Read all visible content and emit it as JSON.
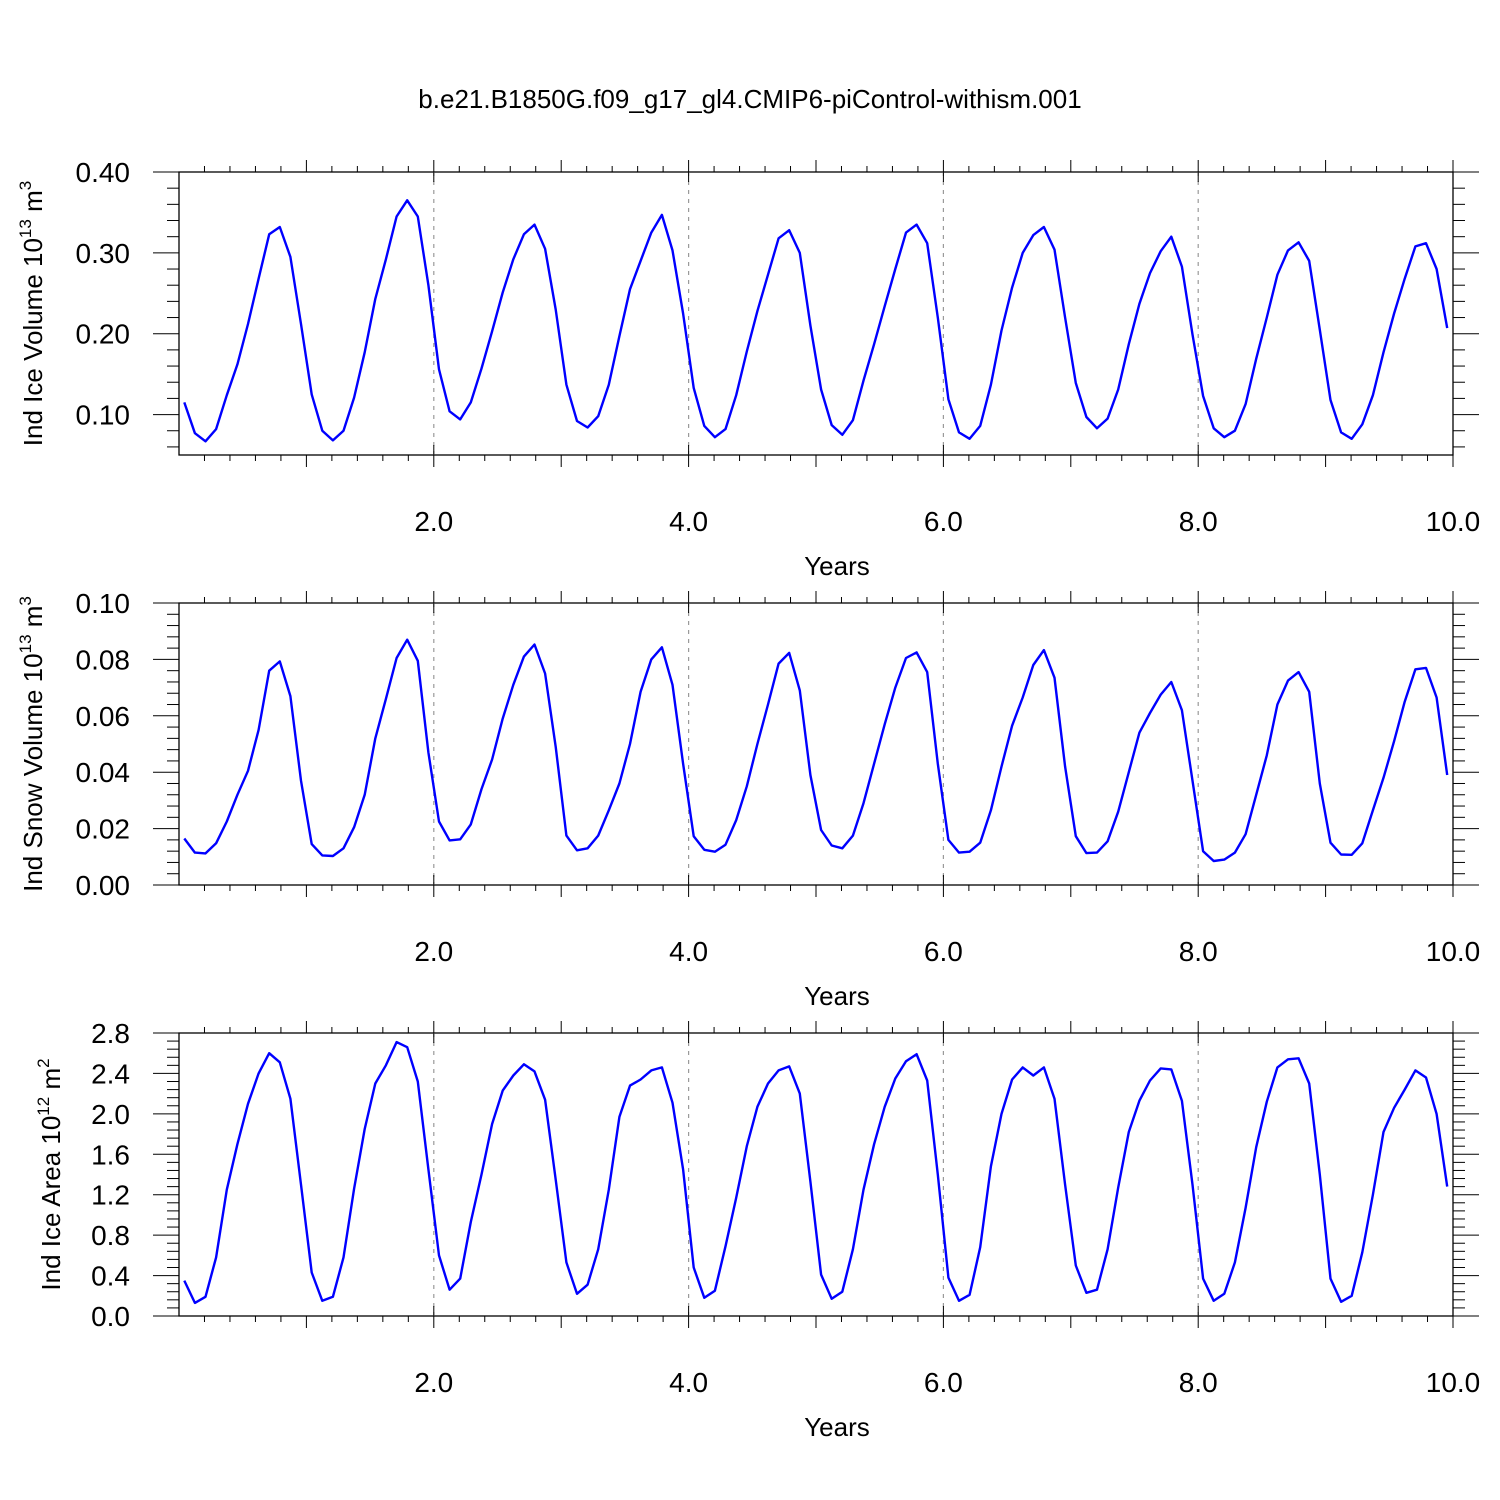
{
  "title": "b.e21.B1850G.f09_g17_gl4.CMIP6-piControl-withism.001",
  "colors": {
    "line": "#0000ff",
    "axis": "#000000",
    "gridline": "#9a9a9a"
  },
  "chart_data": [
    {
      "type": "line",
      "xlabel": "Years",
      "ylabel": {
        "base": "Ind Ice Volume 10",
        "sup": "13",
        "unit": " m",
        "unit_sup": "3"
      },
      "xlim": [
        0.0,
        10.0
      ],
      "ylim": [
        0.05,
        0.4
      ],
      "xticks": [
        "2.0",
        "4.0",
        "6.0",
        "8.0",
        "10.0"
      ],
      "yticks": [
        "0.10",
        "0.20",
        "0.30",
        "0.40"
      ],
      "grid": "vertical dashed at labeled x ticks",
      "series": [
        {
          "x_start": 0.0417,
          "x_step": 0.0833,
          "values": [
            0.115,
            0.077,
            0.067,
            0.082,
            0.124,
            0.162,
            0.212,
            0.268,
            0.323,
            0.332,
            0.295,
            0.212,
            0.125,
            0.08,
            0.068,
            0.08,
            0.121,
            0.177,
            0.243,
            0.292,
            0.345,
            0.365,
            0.345,
            0.26,
            0.156,
            0.104,
            0.094,
            0.115,
            0.157,
            0.203,
            0.251,
            0.292,
            0.323,
            0.335,
            0.305,
            0.23,
            0.137,
            0.092,
            0.084,
            0.098,
            0.137,
            0.197,
            0.255,
            0.29,
            0.325,
            0.347,
            0.303,
            0.225,
            0.133,
            0.086,
            0.072,
            0.082,
            0.124,
            0.178,
            0.228,
            0.273,
            0.318,
            0.328,
            0.3,
            0.21,
            0.131,
            0.087,
            0.075,
            0.093,
            0.142,
            0.187,
            0.234,
            0.28,
            0.325,
            0.335,
            0.312,
            0.22,
            0.119,
            0.078,
            0.07,
            0.086,
            0.137,
            0.204,
            0.257,
            0.3,
            0.322,
            0.332,
            0.304,
            0.22,
            0.139,
            0.097,
            0.083,
            0.095,
            0.131,
            0.187,
            0.237,
            0.275,
            0.302,
            0.32,
            0.283,
            0.199,
            0.123,
            0.083,
            0.072,
            0.08,
            0.113,
            0.169,
            0.22,
            0.273,
            0.303,
            0.313,
            0.29,
            0.205,
            0.118,
            0.078,
            0.07,
            0.088,
            0.124,
            0.177,
            0.225,
            0.268,
            0.308,
            0.312,
            0.28,
            0.207
          ]
        }
      ]
    },
    {
      "type": "line",
      "xlabel": "Years",
      "ylabel": {
        "base": "Ind Snow Volume 10",
        "sup": "13",
        "unit": " m",
        "unit_sup": "3"
      },
      "xlim": [
        0.0,
        10.0
      ],
      "ylim": [
        0.0,
        0.1
      ],
      "xticks": [
        "2.0",
        "4.0",
        "6.0",
        "8.0",
        "10.0"
      ],
      "yticks": [
        "0.00",
        "0.02",
        "0.04",
        "0.06",
        "0.08",
        "0.10"
      ],
      "grid": "vertical dashed at labeled x ticks",
      "series": [
        {
          "x_start": 0.0417,
          "x_step": 0.0833,
          "values": [
            0.0165,
            0.0115,
            0.0112,
            0.0148,
            0.0225,
            0.032,
            0.0405,
            0.055,
            0.076,
            0.0793,
            0.067,
            0.037,
            0.0145,
            0.0105,
            0.0103,
            0.013,
            0.0205,
            0.032,
            0.052,
            0.066,
            0.0805,
            0.087,
            0.0795,
            0.047,
            0.0225,
            0.0158,
            0.0162,
            0.0215,
            0.034,
            0.0445,
            0.059,
            0.071,
            0.081,
            0.0853,
            0.075,
            0.049,
            0.0175,
            0.0123,
            0.013,
            0.0175,
            0.0265,
            0.036,
            0.05,
            0.0685,
            0.08,
            0.0843,
            0.071,
            0.043,
            0.0173,
            0.0125,
            0.0118,
            0.0143,
            0.023,
            0.035,
            0.05,
            0.064,
            0.0785,
            0.0823,
            0.069,
            0.039,
            0.0195,
            0.014,
            0.013,
            0.0175,
            0.029,
            0.043,
            0.057,
            0.07,
            0.0805,
            0.0825,
            0.0755,
            0.043,
            0.016,
            0.0115,
            0.0118,
            0.015,
            0.0265,
            0.042,
            0.0565,
            0.0665,
            0.078,
            0.0833,
            0.0735,
            0.042,
            0.0173,
            0.0113,
            0.0115,
            0.0155,
            0.026,
            0.04,
            0.054,
            0.061,
            0.0675,
            0.072,
            0.062,
            0.037,
            0.012,
            0.0085,
            0.009,
            0.0115,
            0.018,
            0.032,
            0.046,
            0.064,
            0.0725,
            0.0755,
            0.0685,
            0.036,
            0.015,
            0.0108,
            0.0107,
            0.0148,
            0.0265,
            0.038,
            0.051,
            0.065,
            0.0765,
            0.077,
            0.0665,
            0.039
          ]
        }
      ]
    },
    {
      "type": "line",
      "xlabel": "Years",
      "ylabel": {
        "base": "Ind Ice Area 10",
        "sup": "12",
        "unit": " m",
        "unit_sup": "2"
      },
      "xlim": [
        0.0,
        10.0
      ],
      "ylim": [
        0.0,
        2.8
      ],
      "xticks": [
        "2.0",
        "4.0",
        "6.0",
        "8.0",
        "10.0"
      ],
      "yticks": [
        "0.0",
        "0.4",
        "0.8",
        "1.2",
        "1.6",
        "2.0",
        "2.4",
        "2.8"
      ],
      "grid": "vertical dashed at labeled x ticks",
      "series": [
        {
          "x_start": 0.0417,
          "x_step": 0.0833,
          "values": [
            0.35,
            0.13,
            0.19,
            0.58,
            1.25,
            1.7,
            2.1,
            2.4,
            2.6,
            2.51,
            2.15,
            1.3,
            0.43,
            0.15,
            0.19,
            0.58,
            1.26,
            1.85,
            2.3,
            2.48,
            2.71,
            2.66,
            2.32,
            1.45,
            0.6,
            0.26,
            0.37,
            0.93,
            1.4,
            1.9,
            2.23,
            2.38,
            2.49,
            2.42,
            2.14,
            1.35,
            0.53,
            0.22,
            0.31,
            0.66,
            1.25,
            1.97,
            2.28,
            2.34,
            2.43,
            2.46,
            2.11,
            1.45,
            0.48,
            0.18,
            0.25,
            0.69,
            1.17,
            1.68,
            2.07,
            2.3,
            2.43,
            2.47,
            2.2,
            1.33,
            0.41,
            0.17,
            0.24,
            0.66,
            1.25,
            1.7,
            2.07,
            2.35,
            2.52,
            2.59,
            2.33,
            1.4,
            0.38,
            0.15,
            0.21,
            0.68,
            1.48,
            2.0,
            2.34,
            2.46,
            2.38,
            2.46,
            2.15,
            1.3,
            0.5,
            0.23,
            0.26,
            0.66,
            1.27,
            1.82,
            2.13,
            2.33,
            2.45,
            2.44,
            2.13,
            1.3,
            0.37,
            0.15,
            0.22,
            0.53,
            1.07,
            1.67,
            2.12,
            2.46,
            2.54,
            2.55,
            2.3,
            1.4,
            0.37,
            0.14,
            0.2,
            0.63,
            1.2,
            1.82,
            2.06,
            2.24,
            2.43,
            2.36,
            2.0,
            1.28
          ]
        }
      ]
    }
  ]
}
